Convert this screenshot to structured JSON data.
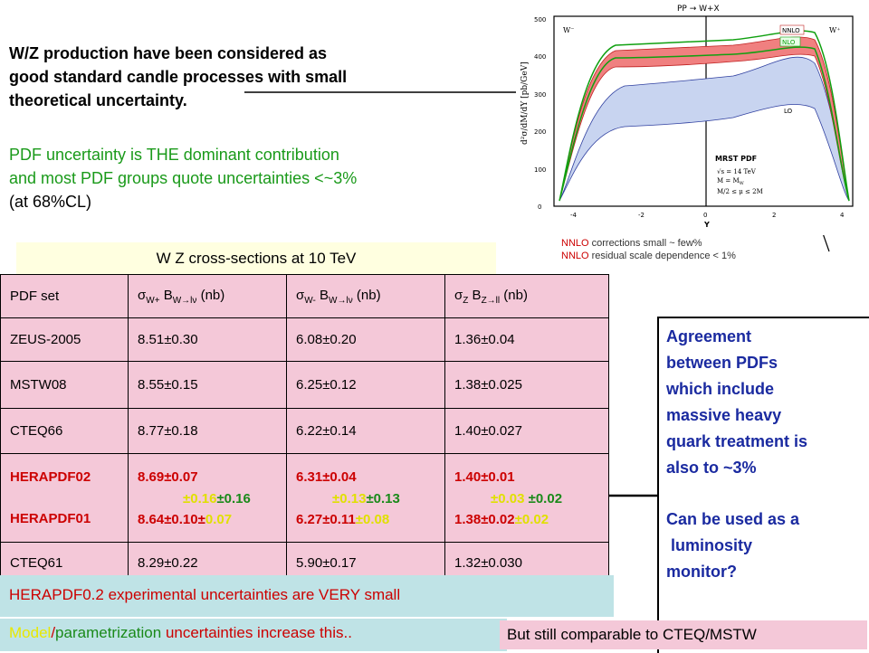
{
  "intro": {
    "line1": "W/Z production have been considered as",
    "line2": "good standard candle processes with small",
    "line3": "theoretical uncertainty."
  },
  "pdf_note": {
    "line1": "PDF uncertainty is THE dominant contribution",
    "line2": "and most PDF groups quote uncertainties <~3%",
    "line3": "(at 68%CL)"
  },
  "table": {
    "title": "W Z cross-sections at  10 TeV",
    "headers": {
      "c1": "PDF set",
      "c2": "σ",
      "c2sub": "W+",
      "c2b": " B",
      "c2bsub": "W→lν",
      "c2c": " (nb)",
      "c3": "σ",
      "c3sub": "W-",
      "c3b": " B",
      "c3bsub": "W→lν",
      "c3c": " (nb)",
      "c4": "σ",
      "c4sub": "Z",
      "c4b": " B",
      "c4bsub": "Z→ll",
      "c4c": " (nb)"
    },
    "rows": [
      {
        "set": "ZEUS-2005",
        "wp": "8.51±0.30",
        "wm": "6.08±0.20",
        "z": "1.36±0.04"
      },
      {
        "set": "MSTW08",
        "wp": " 8.55±0.15",
        "wm": "6.25±0.12",
        "z": "1.38±0.025"
      },
      {
        "set": "CTEQ66",
        "wp": " 8.77±0.18",
        "wm": "6.22±0.14",
        "z": "1.40±0.027"
      }
    ],
    "hera": {
      "set1": "HERAPDF02",
      "set2": "HERAPDF01",
      "wp1": " 8.69±0.07",
      "wp1b_y": "±0.16",
      "wp1b_g": "±0.16",
      "wp2_r": "8.64±0.10±",
      "wp2_y": "0.07",
      "wm1": "6.31±0.04",
      "wm1b_y": "±0.13",
      "wm1b_g": "±0.13",
      "wm2_r": "6.27±0.11",
      "wm2_y": "±0.08",
      "z1": "1.40±0.01",
      "z1b_y": "±0.03",
      "z1b_g": " ±0.02",
      "z2_r": "1.38±0.02",
      "z2_y": "±0.02"
    },
    "last": {
      "set": "CTEQ61",
      "wp": " 8.29±0.22",
      "wm": "5.90±0.17",
      "z": "1.32±0.030"
    }
  },
  "agreement": {
    "l1": "Agreement",
    "l2": "between PDFs",
    "l3": "which include",
    "l4": "massive heavy",
    "l5": "quark treatment is",
    "l6": "also to ~3%",
    "l7": "Can be used as a",
    "l8": " luminosity",
    "l9": "monitor?"
  },
  "bottom": {
    "line1": "HERAPDF0.2 experimental uncertainties are VERY small",
    "line2_y": "Model",
    "line2_sep": "/",
    "line2_g": "parametrization",
    "line2_r": " uncertainties increase this..",
    "still": "But still comparable to CTEQ/MSTW"
  },
  "plot": {
    "title": "PP → W+X",
    "ylabel": "d²σ/dM/dY [pb/GeV]",
    "xlabel": "Y",
    "left_tag": "W⁻",
    "right_tag": "W⁺",
    "legend_nnlo": "NNLO",
    "legend_nlo": "NLO",
    "legend_lo": "LO",
    "pdf_label": "MRST PDF",
    "cond1": "√s = 14 TeV",
    "cond2": "M = M",
    "cond2sub": "W",
    "cond3": "M/2 ≤ μ ≤ 2M",
    "yticks": [
      "0",
      "100",
      "200",
      "300",
      "400",
      "500"
    ],
    "xticks": [
      "-4",
      "-2",
      "0",
      "2",
      "4"
    ]
  },
  "nnlo_note": {
    "r1": "NNLO",
    "b1": " corrections small ~ few%",
    "r2": "NNLO",
    "b2": " residual scale dependence < 1%"
  },
  "colors": {
    "pink": "#f4c8d8",
    "cyan": "#bfe3e6",
    "yellow_bg": "#ffffe0",
    "blue_text": "#1a2aa0"
  }
}
